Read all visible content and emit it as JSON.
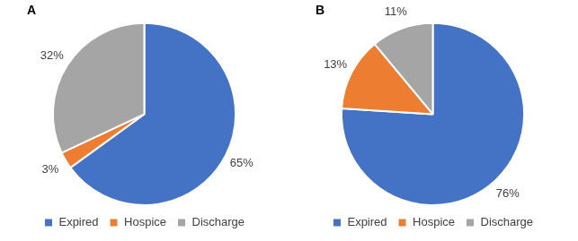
{
  "chart_data": [
    {
      "type": "pie",
      "title": "A",
      "categories": [
        "Expired",
        "Hospice",
        "Discharge"
      ],
      "values": [
        65,
        3,
        32
      ],
      "value_labels": [
        "65%",
        "3%",
        "32%"
      ],
      "colors": [
        "#4472c4",
        "#ed7d31",
        "#a5a5a5"
      ],
      "data_labels": true,
      "legend": "bottom"
    },
    {
      "type": "pie",
      "title": "B",
      "categories": [
        "Expired",
        "Hospice",
        "Discharge"
      ],
      "values": [
        76,
        13,
        11
      ],
      "value_labels": [
        "76%",
        "13%",
        "11%"
      ],
      "colors": [
        "#4472c4",
        "#ed7d31",
        "#a5a5a5"
      ],
      "data_labels": true,
      "legend": "bottom"
    }
  ]
}
